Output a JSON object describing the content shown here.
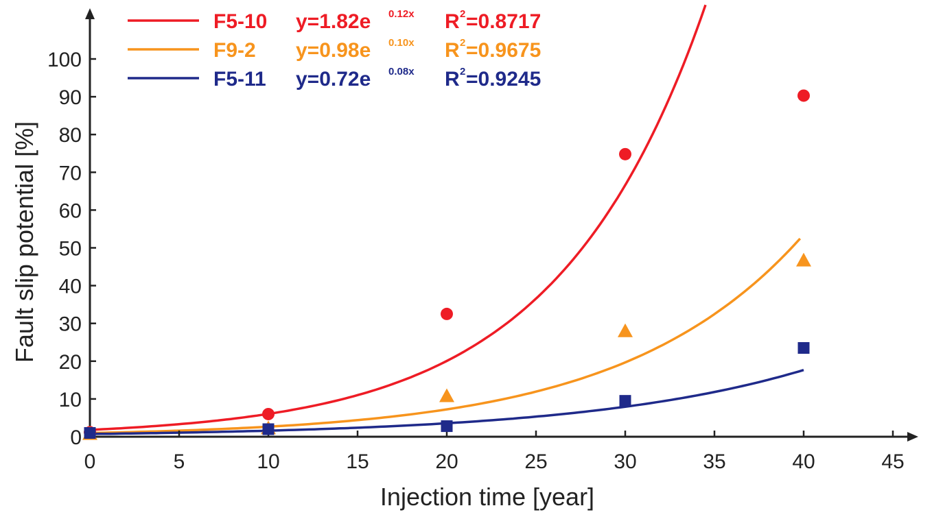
{
  "chart_data": {
    "type": "scatter",
    "xlabel": "Injection time [year]",
    "ylabel": "Fault slip potential [%]",
    "xlim": [
      0,
      45
    ],
    "ylim": [
      0,
      100
    ],
    "x_ticks": [
      0,
      5,
      10,
      15,
      20,
      25,
      30,
      35,
      40,
      45
    ],
    "y_ticks": [
      0,
      10,
      20,
      30,
      40,
      50,
      60,
      70,
      80,
      90,
      100
    ],
    "grid": false,
    "legend_position": "top-left",
    "series": [
      {
        "name": "F5-10",
        "color": "#ee1c25",
        "marker": "circle",
        "x": [
          0,
          10,
          20,
          30,
          40
        ],
        "y": [
          1.2,
          6.0,
          32.5,
          74.8,
          90.3
        ],
        "fit": {
          "a": 1.82,
          "b": 0.12,
          "x_max": 34.5
        },
        "equation": "y=1.82e",
        "exponent": "0.12x",
        "r2_label": "R",
        "r2_value": "=0.8717"
      },
      {
        "name": "F9-2",
        "color": "#f7941d",
        "marker": "triangle",
        "x": [
          0,
          10,
          20,
          30,
          40
        ],
        "y": [
          0.8,
          2.3,
          10.8,
          28.0,
          46.7
        ],
        "fit": {
          "a": 0.98,
          "b": 0.1,
          "x_max": 39.8
        },
        "equation": "y=0.98e",
        "exponent": "0.10x",
        "r2_label": "R",
        "r2_value": "=0.9675"
      },
      {
        "name": "F5-11",
        "color": "#1f2a8a",
        "marker": "square",
        "x": [
          0,
          10,
          20,
          30,
          40
        ],
        "y": [
          1.0,
          2.0,
          2.8,
          9.5,
          23.5
        ],
        "fit": {
          "a": 0.72,
          "b": 0.08,
          "x_max": 40.0
        },
        "equation": "y=0.72e",
        "exponent": "0.08x",
        "r2_label": "R",
        "r2_value": "=0.9245"
      }
    ]
  }
}
